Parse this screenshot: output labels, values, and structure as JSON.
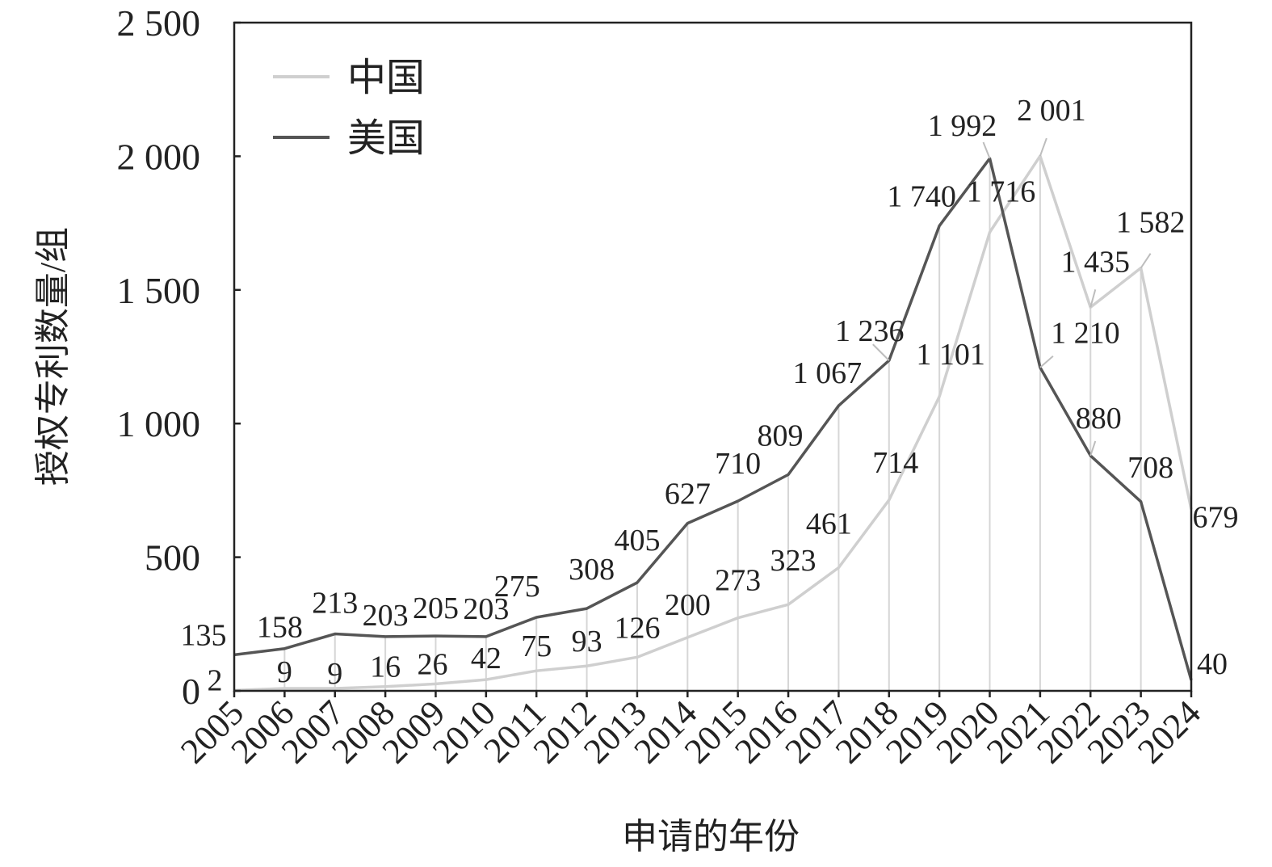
{
  "chart_data": {
    "type": "line",
    "title": "",
    "xlabel": "申请的年份",
    "ylabel": "授权专利数量/组",
    "ylim": [
      0,
      2500
    ],
    "yticks": [
      0,
      500,
      1000,
      1500,
      2000,
      2500
    ],
    "ytick_labels": [
      "0",
      "500",
      "1 000",
      "1 500",
      "2 000",
      "2 500"
    ],
    "legend_position": "top-left",
    "grid": false,
    "categories": [
      "2005",
      "2006",
      "2007",
      "2008",
      "2009",
      "2010",
      "2011",
      "2012",
      "2013",
      "2014",
      "2015",
      "2016",
      "2017",
      "2018",
      "2019",
      "2020",
      "2021",
      "2022",
      "2023",
      "2024"
    ],
    "series": [
      {
        "name": "中国",
        "color": "#cfcfcf",
        "values": [
          2,
          9,
          9,
          16,
          26,
          42,
          75,
          93,
          126,
          200,
          273,
          323,
          461,
          714,
          1101,
          1716,
          2001,
          1435,
          1582,
          679
        ],
        "labels": [
          "2",
          "9",
          "9",
          "16",
          "26",
          "42",
          "75",
          "93",
          "126",
          "200",
          "273",
          "323",
          "461",
          "714",
          "1 101",
          "1 716",
          "2 001",
          "1 435",
          "1 582",
          "679"
        ]
      },
      {
        "name": "美国",
        "color": "#555555",
        "values": [
          135,
          158,
          213,
          203,
          205,
          203,
          275,
          308,
          405,
          627,
          710,
          809,
          1067,
          1236,
          1740,
          1992,
          1210,
          880,
          708,
          40
        ],
        "labels": [
          "135",
          "158",
          "213",
          "203",
          "205",
          "203",
          "275",
          "308",
          "405",
          "627",
          "710",
          "809",
          "1 067",
          "1 236",
          "1 740",
          "1 992",
          "1 210",
          "880",
          "708",
          "40"
        ]
      }
    ]
  }
}
